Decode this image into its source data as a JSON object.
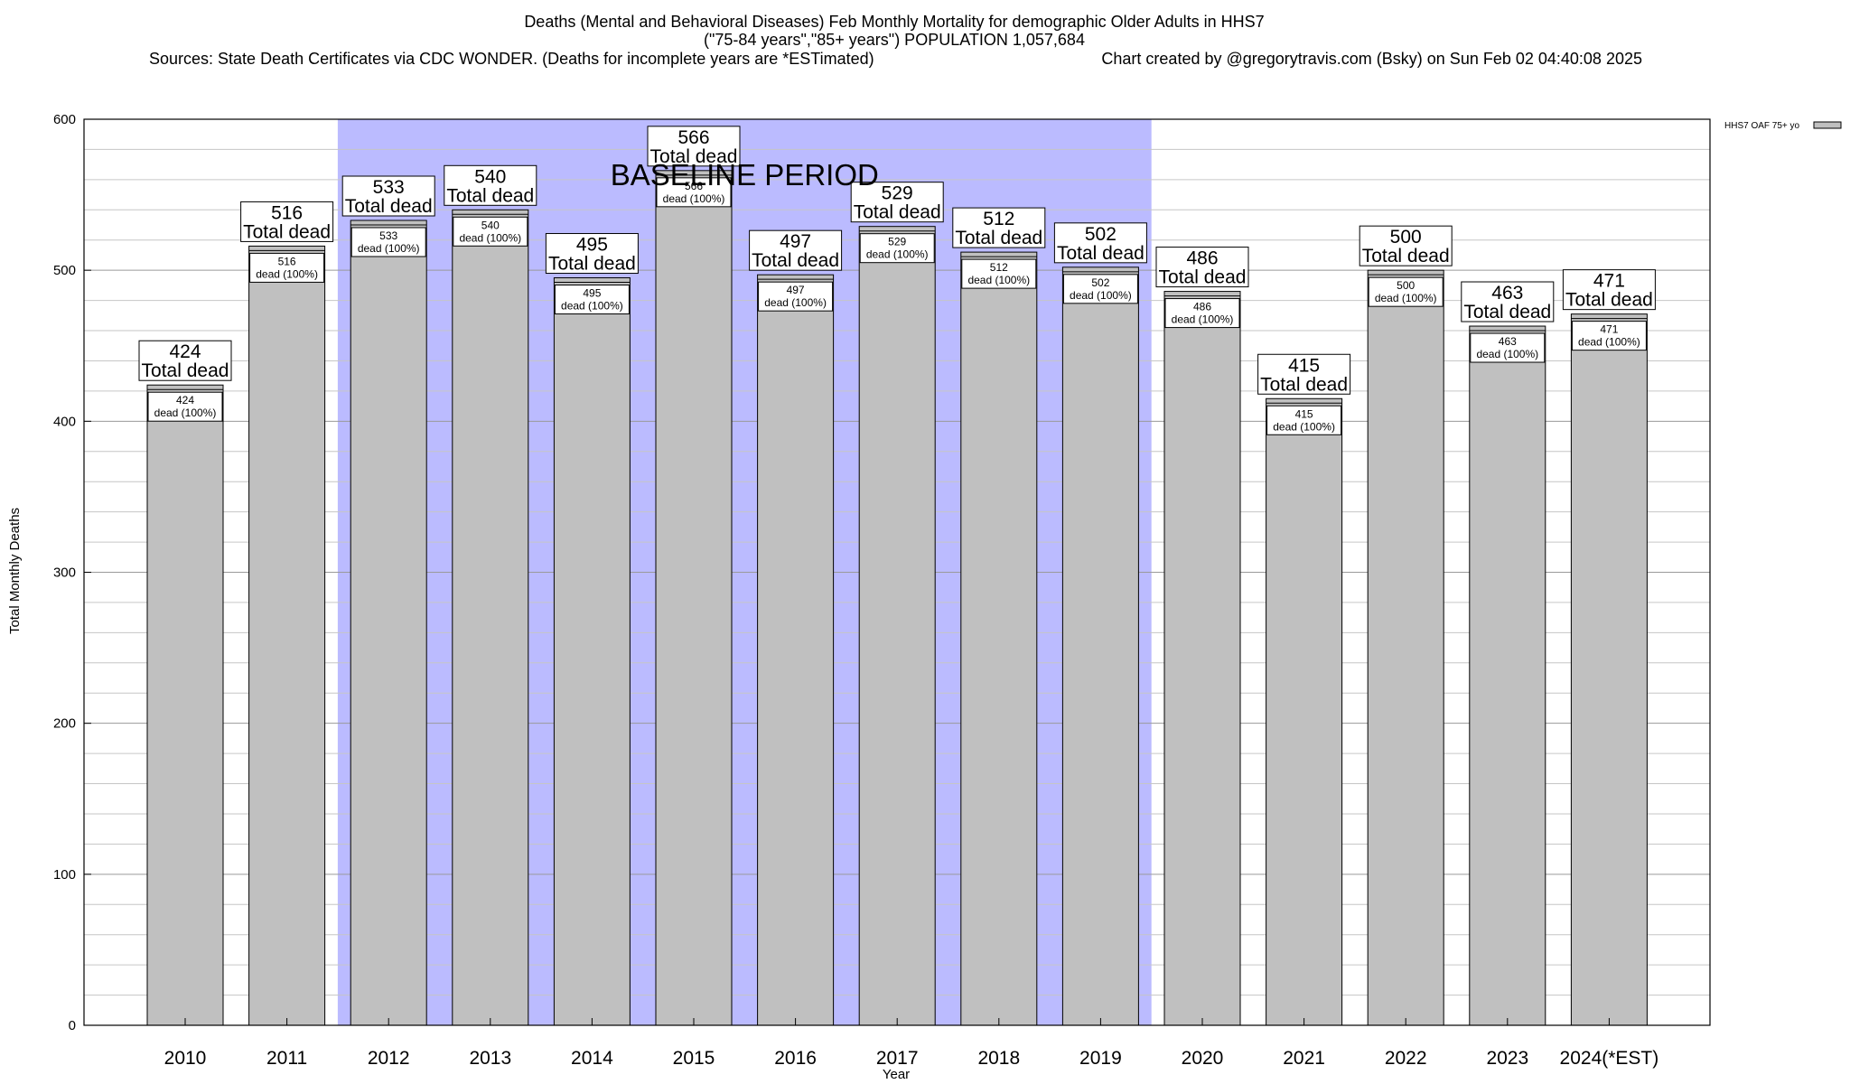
{
  "chart_data": {
    "type": "bar",
    "title_lines": [
      "Deaths (Mental and Behavioral Diseases) Feb Monthly Mortality for demographic Older Adults in HHS7",
      "(\"75-84 years\",\"85+ years\") POPULATION 1,057,684"
    ],
    "source_text": "Sources: State Death Certificates via CDC WONDER. (Deaths for incomplete years are *ESTimated)",
    "credit_text": "Chart created by @gregorytravis.com (Bsky) on Sun Feb 02 04:40:08 2025",
    "xlabel": "Year",
    "ylabel": "Total Monthly Deaths",
    "ylim": [
      0,
      600
    ],
    "yticks": [
      0,
      100,
      200,
      300,
      400,
      500,
      600
    ],
    "minor_grid_step": 20,
    "grid": true,
    "categories": [
      "2010",
      "2011",
      "2012",
      "2013",
      "2014",
      "2015",
      "2016",
      "2017",
      "2018",
      "2019",
      "2020",
      "2021",
      "2022",
      "2023",
      "2024(*EST)"
    ],
    "series": [
      {
        "name": "HHS7 OAF 75+ yo",
        "color": "#c0c0c0",
        "values": [
          424,
          516,
          533,
          540,
          495,
          566,
          497,
          529,
          512,
          502,
          486,
          415,
          500,
          463,
          471
        ]
      }
    ],
    "top_label_suffix": "Total dead",
    "inner_label_suffix": "dead (100%)",
    "baseline_period": {
      "label": "BASELINE PERIOD",
      "start": "2012",
      "end": "2019",
      "color": "#bbbbff"
    },
    "legend_position": "top-right"
  }
}
